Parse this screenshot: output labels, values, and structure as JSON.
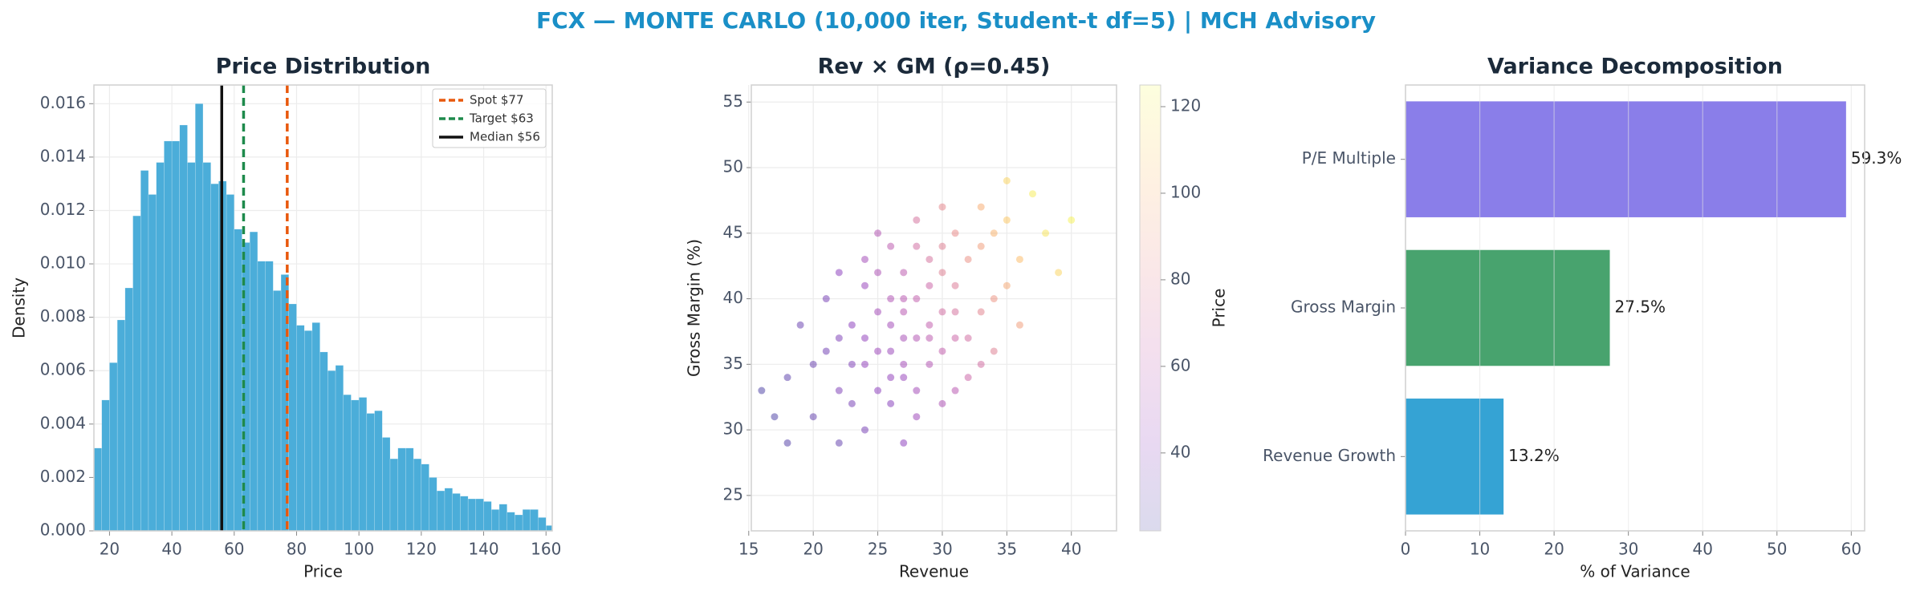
{
  "title": "FCX — MONTE CARLO (10,000 iter, Student-t df=5) | MCH Advisory",
  "chart_data": [
    {
      "type": "histogram",
      "title": "Price Distribution",
      "x_label": "Price",
      "y_label": "Density",
      "color": "#4badd9",
      "bins": [
        15,
        17.5,
        20,
        22.5,
        25,
        27.5,
        30,
        32.5,
        35,
        37.5,
        40,
        42.5,
        45,
        47.5,
        50,
        52.5,
        55,
        57.5,
        60,
        62.5,
        65,
        67.5,
        70,
        72.5,
        75,
        77.5,
        80,
        82.5,
        85,
        87.5,
        90,
        92.5,
        95,
        97.5,
        100,
        102.5,
        105,
        107.5,
        110,
        112.5,
        115,
        117.5,
        120,
        122.5,
        125,
        127.5,
        130,
        132.5,
        135,
        137.5,
        140,
        142.5,
        145,
        147.5,
        150,
        152.5,
        155,
        157.5,
        160,
        162.5
      ],
      "values": [
        0.0031,
        0.0049,
        0.0063,
        0.0079,
        0.0091,
        0.0118,
        0.0135,
        0.0126,
        0.0138,
        0.0146,
        0.0146,
        0.0152,
        0.0138,
        0.016,
        0.0138,
        0.013,
        0.0131,
        0.0126,
        0.0113,
        0.0108,
        0.0112,
        0.0101,
        0.0101,
        0.009,
        0.0096,
        0.0085,
        0.0077,
        0.0075,
        0.0078,
        0.0067,
        0.006,
        0.0062,
        0.0051,
        0.0049,
        0.005,
        0.0044,
        0.0045,
        0.0035,
        0.0027,
        0.0031,
        0.0031,
        0.0027,
        0.0025,
        0.002,
        0.0015,
        0.0016,
        0.0014,
        0.0013,
        0.0012,
        0.0012,
        0.0011,
        0.0008,
        0.001,
        0.0007,
        0.0006,
        0.0008,
        0.0008,
        0.0005,
        0.0002
      ],
      "lines": [
        {
          "name": "Spot $77",
          "value": 77,
          "color": "#e8580c",
          "style": "dashed"
        },
        {
          "name": "Target $63",
          "value": 63,
          "color": "#1e8a4c",
          "style": "dashed"
        },
        {
          "name": "Median $56",
          "value": 56,
          "color": "#111111",
          "style": "solid"
        }
      ],
      "xlim": [
        15,
        162
      ],
      "ylim": [
        0,
        0.0167
      ],
      "xticks": [
        20,
        40,
        60,
        80,
        100,
        120,
        140,
        160
      ],
      "yticks": [
        {
          "value": 0,
          "label": "0.000"
        },
        {
          "value": 0.002,
          "label": "0.002"
        },
        {
          "value": 0.004,
          "label": "0.004"
        },
        {
          "value": 0.006,
          "label": "0.006"
        },
        {
          "value": 0.008,
          "label": "0.008"
        },
        {
          "value": 0.01,
          "label": "0.010"
        },
        {
          "value": 0.012,
          "label": "0.012"
        },
        {
          "value": 0.014,
          "label": "0.014"
        },
        {
          "value": 0.016,
          "label": "0.016"
        }
      ],
      "grid": true,
      "legend": "upper right"
    },
    {
      "type": "scatter",
      "title": "Rev × GM (ρ=0.45)",
      "x_label": "Revenue",
      "y_label": "Gross Margin (%)",
      "colorbar_label": "Price",
      "x": [
        25,
        27,
        22,
        30,
        33,
        28,
        24,
        26,
        31,
        35,
        20,
        18,
        29,
        32,
        27,
        23,
        36,
        26,
        30,
        25,
        21,
        34,
        28,
        38,
        24,
        29,
        31,
        19,
        27,
        33,
        26,
        22,
        30,
        35,
        28,
        25,
        32,
        17,
        29,
        24,
        37,
        27,
        31,
        23,
        26,
        34,
        28,
        21,
        30,
        25,
        40,
        27,
        33,
        22,
        29,
        16,
        26,
        31,
        36,
        24,
        28,
        32,
        20,
        27,
        30,
        25,
        35,
        23,
        29,
        39,
        26,
        31,
        28,
        22,
        34,
        27,
        24,
        30,
        33,
        18
      ],
      "values": [
        36,
        39,
        33,
        42,
        44,
        37,
        35,
        40,
        39,
        46,
        31,
        34,
        41,
        37,
        34,
        38,
        43,
        32,
        36,
        42,
        36,
        40,
        44,
        45,
        30,
        38,
        45,
        38,
        42,
        39,
        36,
        29,
        47,
        41,
        33,
        39,
        43,
        31,
        35,
        41,
        48,
        37,
        33,
        35,
        44,
        36,
        40,
        40,
        39,
        33,
        46,
        29,
        47,
        37,
        43,
        33,
        38,
        41,
        38,
        37,
        46,
        34,
        35,
        40,
        32,
        45,
        49,
        32,
        37,
        42,
        34,
        37,
        31,
        42,
        45,
        35,
        43,
        44,
        35,
        29
      ],
      "color_values": [
        48,
        58,
        38,
        78,
        92,
        56,
        44,
        55,
        72,
        108,
        30,
        28,
        66,
        70,
        46,
        42,
        104,
        40,
        62,
        54,
        34,
        88,
        70,
        118,
        36,
        62,
        84,
        32,
        60,
        80,
        47,
        30,
        82,
        96,
        50,
        50,
        86,
        24,
        56,
        46,
        120,
        52,
        58,
        38,
        60,
        78,
        62,
        36,
        70,
        42,
        122,
        42,
        98,
        38,
        72,
        24,
        50,
        76,
        92,
        44,
        72,
        66,
        32,
        58,
        54,
        56,
        112,
        36,
        60,
        112,
        44,
        66,
        48,
        42,
        100,
        50,
        50,
        78,
        70,
        26
      ],
      "colormap": [
        "#0d0887",
        "#6a00a8",
        "#b12a90",
        "#e16462",
        "#fca636",
        "#f0f921"
      ],
      "xlim": [
        15.2,
        43.5
      ],
      "ylim": [
        22.3,
        56.3
      ],
      "clim": [
        22,
        125
      ],
      "xticks": [
        15,
        20,
        25,
        30,
        35,
        40
      ],
      "yticks": [
        25,
        30,
        35,
        40,
        45,
        50,
        55
      ],
      "cticks": [
        40,
        60,
        80,
        100,
        120
      ],
      "grid": true
    },
    {
      "type": "barh",
      "title": "Variance Decomposition",
      "x_label": "% of Variance",
      "categories": [
        "P/E Multiple",
        "Gross Margin",
        "Revenue Growth"
      ],
      "values": [
        59.3,
        27.5,
        13.2
      ],
      "value_labels": [
        "59.3%",
        "27.5%",
        "13.2%"
      ],
      "colors": [
        "#8a7ee9",
        "#48a36e",
        "#35a3d4"
      ],
      "xlim": [
        0,
        61.8
      ],
      "xticks": [
        0,
        10,
        20,
        30,
        40,
        50,
        60
      ],
      "grid": true
    }
  ]
}
